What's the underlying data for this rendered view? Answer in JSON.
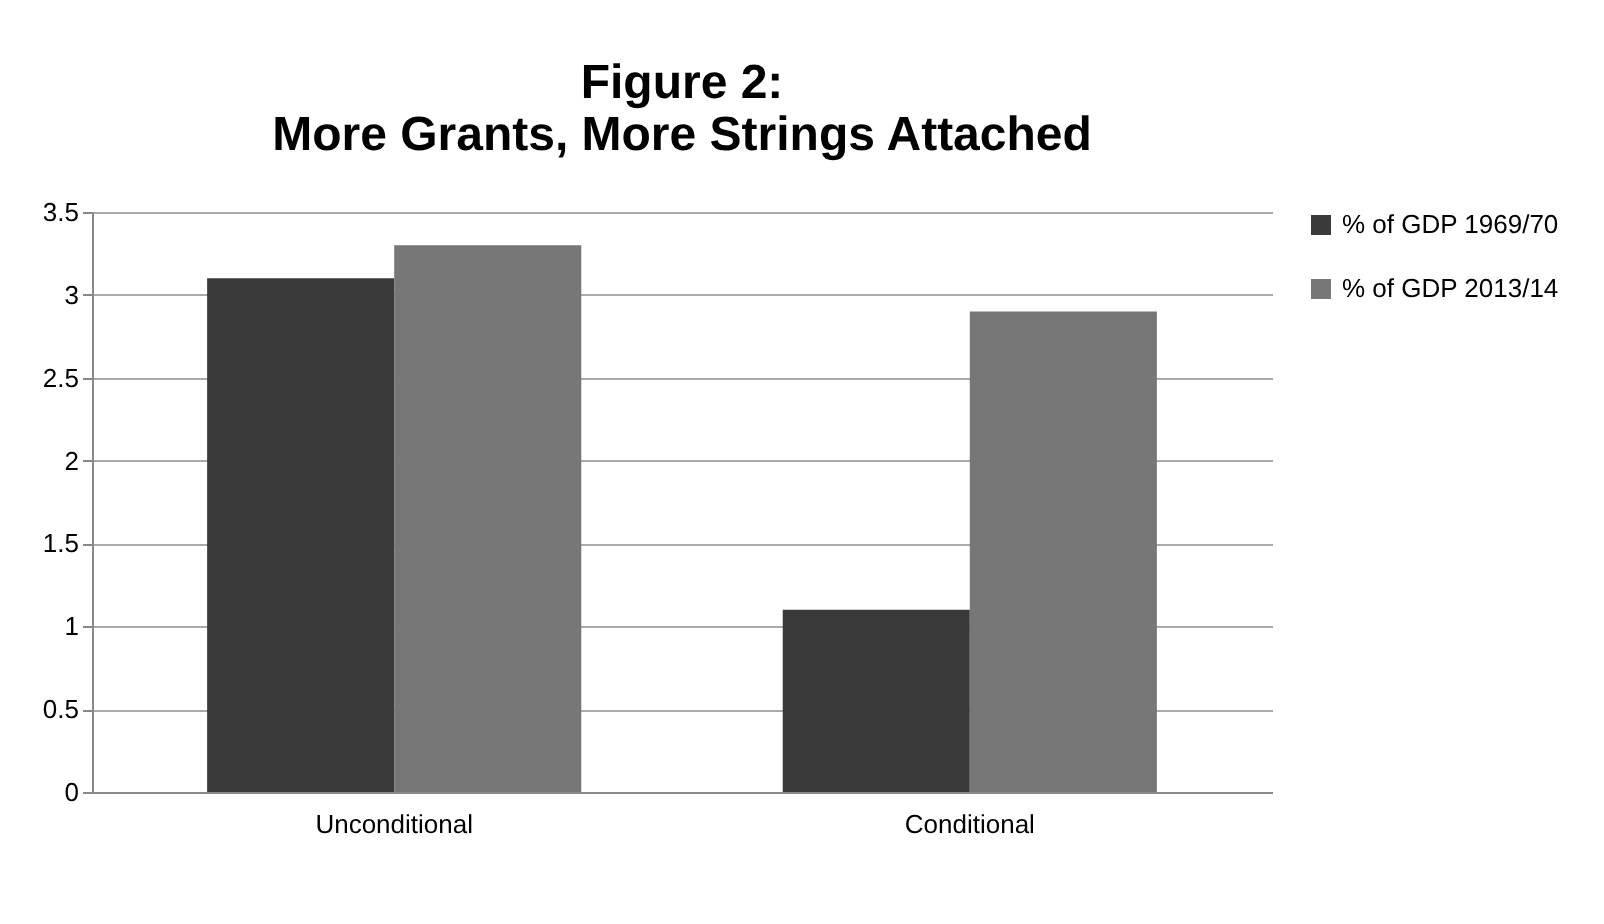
{
  "chart_data": {
    "type": "bar",
    "title": [
      "Figure 2:",
      "More Grants, More Strings Attached"
    ],
    "categories": [
      "Unconditional",
      "Conditional"
    ],
    "series": [
      {
        "name": "% of GDP 1969/70",
        "color": "#3a3a3a",
        "values": [
          3.1,
          1.1
        ]
      },
      {
        "name": "% of GDP 2013/14",
        "color": "#777777",
        "values": [
          3.3,
          2.9
        ]
      }
    ],
    "ylim": [
      0,
      3.5
    ],
    "yticks": [
      0,
      0.5,
      1,
      1.5,
      2,
      2.5,
      3,
      3.5
    ],
    "grid": "y",
    "legend": "right"
  }
}
